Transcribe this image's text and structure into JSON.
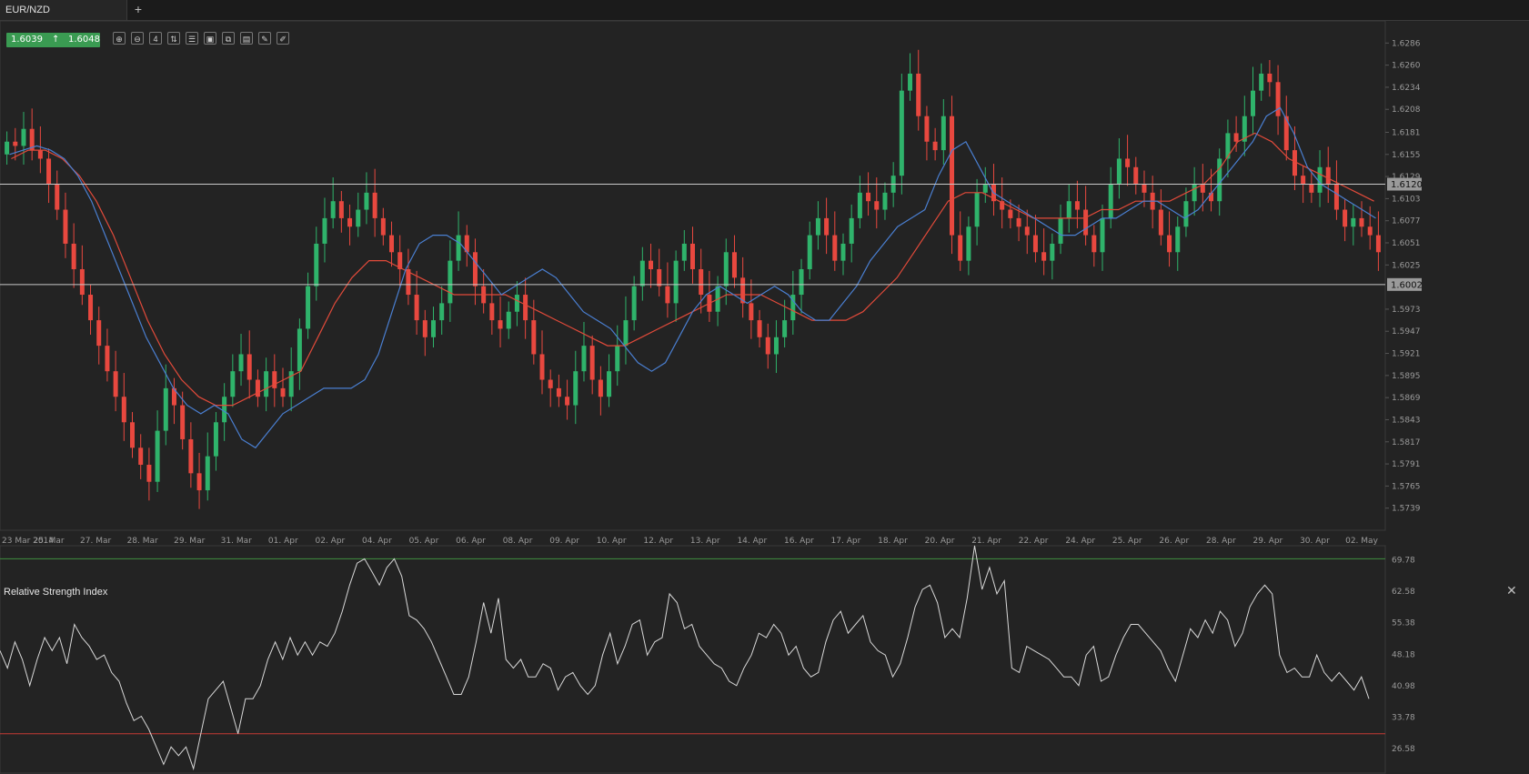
{
  "tab": {
    "label": "EUR/NZD",
    "add_label": "+"
  },
  "quote": {
    "bid": "1.6039",
    "ask": "1.6048",
    "direction_glyph": "↑"
  },
  "toolbar": [
    "zoom-in-icon",
    "zoom-out-icon",
    "period-icon",
    "candles-icon",
    "indicators-icon",
    "chart-type-icon",
    "template-icon",
    "copy-icon",
    "draw-icon",
    "edit-icon"
  ],
  "toolbar_glyphs": [
    "⊕",
    "⊖",
    "4",
    "⇅",
    "☰",
    "▣",
    "⧉",
    "▤",
    "✎",
    "✐"
  ],
  "rsi": {
    "title": "Relative Strength Index",
    "close_label": "✕"
  },
  "colors": {
    "bull": "#2fb36b",
    "bear": "#e8483f",
    "ma_fast": "#4a7fd1",
    "ma_slow": "#e14a3a",
    "hline": "#c8c8c8",
    "rsi_line": "#d8d8d8",
    "rsi_upper": "#3f8f3f",
    "rsi_lower": "#c63a35"
  },
  "chart_data": {
    "type": "candlestick",
    "symbol": "EUR/NZD",
    "ylim": [
      1.5713,
      1.6312
    ],
    "y_ticks": [
      "1.6286",
      "1.6260",
      "1.6234",
      "1.6208",
      "1.6181",
      "1.6155",
      "1.6129",
      "1.6103",
      "1.6077",
      "1.6051",
      "1.6025",
      "1.5973",
      "1.5947",
      "1.5921",
      "1.5895",
      "1.5869",
      "1.5843",
      "1.5817",
      "1.5791",
      "1.5765",
      "1.5739"
    ],
    "horizontal_lines": [
      "1.6120",
      "1.6002"
    ],
    "x_labels": [
      "23 Mar 2014",
      "25. Mar",
      "27. Mar",
      "28. Mar",
      "29. Mar",
      "31. Mar",
      "01. Apr",
      "02. Apr",
      "04. Apr",
      "05. Apr",
      "06. Apr",
      "08. Apr",
      "09. Apr",
      "10. Apr",
      "12. Apr",
      "13. Apr",
      "14. Apr",
      "16. Apr",
      "17. Apr",
      "18. Apr",
      "20. Apr",
      "21. Apr",
      "22. Apr",
      "24. Apr",
      "25. Apr",
      "26. Apr",
      "28. Apr",
      "29. Apr",
      "30. Apr",
      "02. May"
    ],
    "close_path": [
      1.617,
      1.6165,
      1.6185,
      1.616,
      1.615,
      1.612,
      1.609,
      1.605,
      1.602,
      1.599,
      1.596,
      1.593,
      1.59,
      1.587,
      1.584,
      1.581,
      1.579,
      1.577,
      1.583,
      1.588,
      1.586,
      1.582,
      1.578,
      1.576,
      1.58,
      1.584,
      1.587,
      1.59,
      1.592,
      1.589,
      1.587,
      1.59,
      1.588,
      1.587,
      1.59,
      1.595,
      1.6,
      1.605,
      1.608,
      1.61,
      1.608,
      1.607,
      1.609,
      1.611,
      1.608,
      1.606,
      1.604,
      1.602,
      1.599,
      1.596,
      1.594,
      1.596,
      1.598,
      1.603,
      1.606,
      1.604,
      1.6,
      1.598,
      1.596,
      1.595,
      1.597,
      1.599,
      1.596,
      1.592,
      1.589,
      1.588,
      1.587,
      1.586,
      1.59,
      1.593,
      1.589,
      1.587,
      1.59,
      1.593,
      1.596,
      1.6,
      1.603,
      1.602,
      1.6,
      1.598,
      1.603,
      1.605,
      1.602,
      1.599,
      1.597,
      1.6,
      1.604,
      1.601,
      1.598,
      1.596,
      1.594,
      1.592,
      1.594,
      1.596,
      1.599,
      1.602,
      1.606,
      1.608,
      1.606,
      1.603,
      1.605,
      1.608,
      1.611,
      1.61,
      1.609,
      1.611,
      1.613,
      1.623,
      1.625,
      1.62,
      1.617,
      1.616,
      1.62,
      1.606,
      1.603,
      1.607,
      1.611,
      1.612,
      1.61,
      1.609,
      1.608,
      1.607,
      1.606,
      1.604,
      1.603,
      1.605,
      1.608,
      1.61,
      1.609,
      1.606,
      1.604,
      1.608,
      1.612,
      1.615,
      1.614,
      1.612,
      1.611,
      1.609,
      1.606,
      1.604,
      1.607,
      1.61,
      1.612,
      1.611,
      1.61,
      1.615,
      1.618,
      1.617,
      1.62,
      1.623,
      1.625,
      1.624,
      1.62,
      1.616,
      1.613,
      1.612,
      1.611,
      1.614,
      1.612,
      1.609,
      1.607,
      1.608,
      1.607,
      1.606,
      1.604
    ],
    "ma_fast_path": [
      1.6155,
      1.616,
      1.6165,
      1.616,
      1.615,
      1.613,
      1.61,
      1.606,
      1.602,
      1.598,
      1.594,
      1.591,
      1.588,
      1.586,
      1.585,
      1.586,
      1.585,
      1.582,
      1.581,
      1.583,
      1.585,
      1.586,
      1.587,
      1.588,
      1.588,
      1.588,
      1.589,
      1.592,
      1.597,
      1.602,
      1.605,
      1.606,
      1.606,
      1.605,
      1.603,
      1.601,
      1.599,
      1.6,
      1.601,
      1.602,
      1.601,
      1.599,
      1.597,
      1.596,
      1.595,
      1.593,
      1.591,
      1.59,
      1.591,
      1.594,
      1.597,
      1.599,
      1.6,
      1.599,
      1.598,
      1.599,
      1.6,
      1.599,
      1.597,
      1.596,
      1.596,
      1.598,
      1.6,
      1.603,
      1.605,
      1.607,
      1.608,
      1.609,
      1.613,
      1.616,
      1.617,
      1.614,
      1.611,
      1.61,
      1.609,
      1.608,
      1.607,
      1.606,
      1.606,
      1.607,
      1.608,
      1.608,
      1.609,
      1.61,
      1.61,
      1.609,
      1.608,
      1.609,
      1.611,
      1.613,
      1.615,
      1.617,
      1.62,
      1.621,
      1.618,
      1.614,
      1.612,
      1.611,
      1.61,
      1.609,
      1.608
    ],
    "ma_slow_path": [
      1.615,
      1.616,
      1.616,
      1.615,
      1.613,
      1.61,
      1.606,
      1.601,
      1.596,
      1.592,
      1.589,
      1.587,
      1.586,
      1.586,
      1.587,
      1.588,
      1.589,
      1.59,
      1.594,
      1.598,
      1.601,
      1.603,
      1.603,
      1.602,
      1.601,
      1.6,
      1.599,
      1.599,
      1.599,
      1.599,
      1.598,
      1.597,
      1.596,
      1.595,
      1.594,
      1.593,
      1.593,
      1.594,
      1.595,
      1.596,
      1.597,
      1.598,
      1.599,
      1.599,
      1.599,
      1.598,
      1.597,
      1.596,
      1.596,
      1.596,
      1.597,
      1.599,
      1.601,
      1.604,
      1.607,
      1.61,
      1.611,
      1.611,
      1.61,
      1.609,
      1.608,
      1.608,
      1.608,
      1.608,
      1.609,
      1.609,
      1.61,
      1.61,
      1.61,
      1.611,
      1.612,
      1.614,
      1.617,
      1.618,
      1.617,
      1.615,
      1.614,
      1.613,
      1.612,
      1.611,
      1.61
    ],
    "rsi": {
      "title": "Relative Strength Index",
      "ylim": [
        21.0,
        73.0
      ],
      "y_ticks": [
        "69.78",
        "62.58",
        "55.38",
        "48.18",
        "40.98",
        "33.78",
        "26.58"
      ],
      "overbought": 70,
      "oversold": 30,
      "values": [
        49,
        45,
        51,
        47,
        41,
        47,
        52,
        49,
        52,
        46,
        55,
        52,
        50,
        47,
        48,
        44,
        42,
        37,
        33,
        34,
        31,
        27,
        23,
        27,
        25,
        27,
        22,
        30,
        38,
        40,
        42,
        36,
        30,
        38,
        38,
        41,
        47,
        51,
        47,
        52,
        48,
        51,
        48,
        51,
        50,
        53,
        58,
        64,
        69,
        70,
        67,
        64,
        68,
        70,
        66,
        57,
        56,
        54,
        51,
        47,
        43,
        39,
        39,
        43,
        51,
        60,
        53,
        61,
        47,
        45,
        47,
        43,
        43,
        46,
        45,
        40,
        43,
        44,
        41,
        39,
        41,
        48,
        53,
        46,
        50,
        55,
        56,
        48,
        51,
        52,
        62,
        60,
        54,
        55,
        50,
        48,
        46,
        45,
        42,
        41,
        45,
        48,
        53,
        52,
        55,
        53,
        48,
        50,
        45,
        43,
        44,
        51,
        56,
        58,
        53,
        55,
        57,
        51,
        49,
        48,
        43,
        46,
        52,
        59,
        63,
        64,
        60,
        52,
        54,
        52,
        61,
        73,
        63,
        68,
        62,
        65,
        45,
        44,
        50,
        49,
        48,
        47,
        45,
        43,
        43,
        41,
        48,
        50,
        42,
        43,
        48,
        52,
        55,
        55,
        53,
        51,
        49,
        45,
        42,
        48,
        54,
        52,
        56,
        53,
        58,
        56,
        50,
        53,
        59,
        62,
        64,
        62,
        48,
        44,
        45,
        43,
        43,
        48,
        44,
        42,
        44,
        42,
        40,
        43,
        38
      ]
    }
  }
}
